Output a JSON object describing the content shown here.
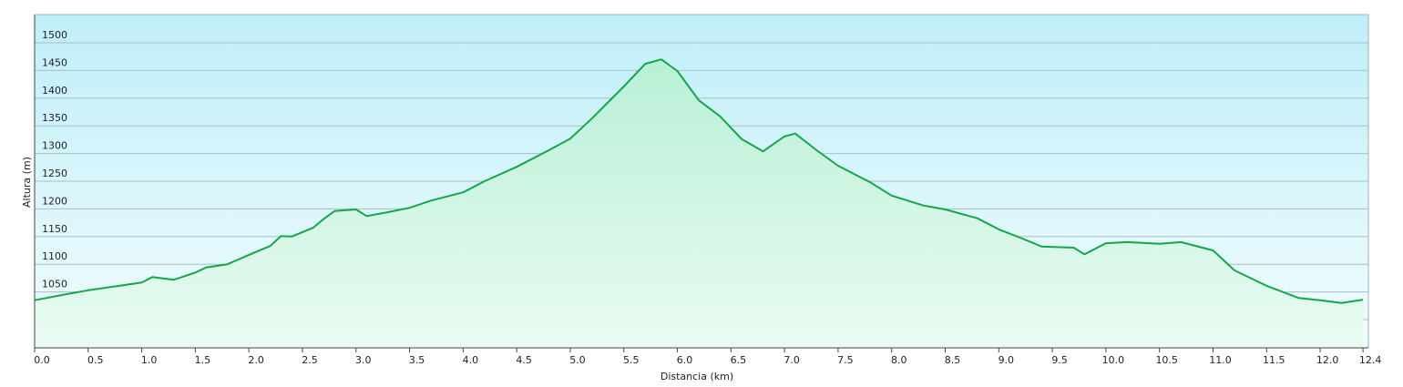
{
  "chart_data": {
    "type": "area",
    "xlabel": "Distancia  (km)",
    "ylabel": "Altura (m)",
    "x": [
      0.0,
      0.3,
      0.5,
      1.0,
      1.1,
      1.3,
      1.5,
      1.6,
      1.8,
      2.0,
      2.2,
      2.3,
      2.4,
      2.6,
      2.7,
      2.8,
      3.0,
      3.1,
      3.3,
      3.5,
      3.7,
      4.0,
      4.2,
      4.5,
      4.8,
      5.0,
      5.2,
      5.5,
      5.7,
      5.85,
      6.0,
      6.2,
      6.4,
      6.6,
      6.8,
      7.0,
      7.1,
      7.3,
      7.5,
      7.8,
      8.0,
      8.3,
      8.5,
      8.8,
      9.0,
      9.2,
      9.4,
      9.7,
      9.8,
      10.0,
      10.2,
      10.5,
      10.7,
      11.0,
      11.2,
      11.5,
      11.8,
      12.0,
      12.2,
      12.4
    ],
    "values": [
      1035,
      1046,
      1053,
      1067,
      1077,
      1072,
      1085,
      1094,
      1100,
      1117,
      1133,
      1151,
      1150,
      1166,
      1182,
      1196,
      1199,
      1187,
      1194,
      1202,
      1215,
      1230,
      1250,
      1276,
      1306,
      1327,
      1363,
      1421,
      1462,
      1470,
      1449,
      1396,
      1367,
      1326,
      1304,
      1331,
      1336,
      1306,
      1278,
      1248,
      1224,
      1206,
      1199,
      1183,
      1163,
      1148,
      1132,
      1130,
      1118,
      1138,
      1140,
      1137,
      1140,
      1125,
      1089,
      1061,
      1039,
      1035,
      1030,
      1036
    ],
    "color": "#12a84a",
    "xlim": [
      0,
      12.45
    ],
    "ylim": [
      949,
      1551
    ],
    "xticks": [
      {
        "value": 0,
        "label": "0.0"
      },
      0.5,
      {
        "value": 1,
        "label": "1.0"
      },
      1.5,
      {
        "value": 2,
        "label": "2.0"
      },
      2.5,
      {
        "value": 3,
        "label": "3.0"
      },
      3.5,
      {
        "value": 4,
        "label": "4.0"
      },
      4.5,
      {
        "value": 5,
        "label": "5.0"
      },
      5.5,
      {
        "value": 6,
        "label": "6.0"
      },
      6.5,
      {
        "value": 7,
        "label": "7.0"
      },
      7.5,
      {
        "value": 8,
        "label": "8.0"
      },
      8.5,
      {
        "value": 9,
        "label": "9.0"
      },
      9.5,
      {
        "value": 10,
        "label": "10.0"
      },
      10.5,
      {
        "value": 11,
        "label": "11.0"
      },
      11.5,
      {
        "value": 12,
        "label": "12.0"
      },
      12.4
    ],
    "yticks": [
      1000,
      1050,
      1100,
      1150,
      1200,
      1250,
      1300,
      1350,
      1400,
      1450,
      1500
    ],
    "grid": true
  }
}
